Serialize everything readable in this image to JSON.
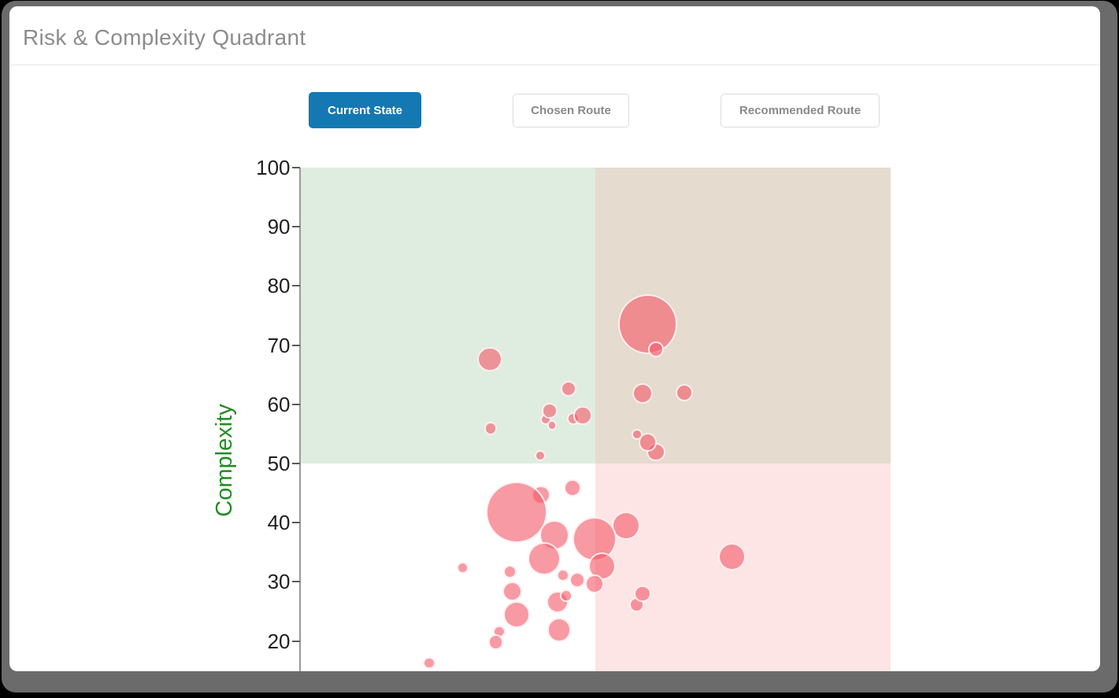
{
  "page": {
    "title": "Risk & Complexity Quadrant"
  },
  "tabs": [
    {
      "label": "Current State",
      "active": true
    },
    {
      "label": "Chosen Route",
      "active": false
    },
    {
      "label": "Recommended Route",
      "active": false
    }
  ],
  "colors": {
    "active_tab_bg": "#1478b2",
    "active_tab_text": "#ffffff",
    "inactive_tab_text": "#8a8a8a",
    "inactive_tab_border": "#dcdcdc",
    "title_text": "#8c8c8c",
    "axis_title_green": "#228b22",
    "tick_text": "#1f1f1f",
    "bubble_fill": "rgba(243,92,106,0.62)",
    "bubble_border": "rgba(255,255,255,0.85)",
    "quadrant_top_left": "#dfede0",
    "quadrant_top_right": "#e5dbce",
    "quadrant_bottom_right": "#fde5e5",
    "quadrant_bottom_left": "#ffffff",
    "window_frame": "#6b6b6b"
  },
  "chart_data": {
    "type": "scatter",
    "subtype": "bubble",
    "title": "",
    "xlabel": "",
    "ylabel": "Complexity",
    "xlim": [
      0,
      100
    ],
    "ylim": [
      0,
      100
    ],
    "y_ticks": [
      100,
      90,
      80,
      70,
      60,
      50,
      40,
      30,
      20
    ],
    "x_axis_labels_visible": false,
    "grid": false,
    "legend_position": "none",
    "quadrants": {
      "split_x": 50,
      "split_y": 50
    },
    "series": [
      {
        "name": "Current State",
        "points": [
          {
            "x": 40.8,
            "y": 44.7,
            "r": 1.6
          },
          {
            "x": 36.7,
            "y": 41.8,
            "r": 5.2
          },
          {
            "x": 46.2,
            "y": 45.9,
            "r": 1.45
          },
          {
            "x": 43.1,
            "y": 37.9,
            "r": 2.5
          },
          {
            "x": 41.4,
            "y": 33.9,
            "r": 2.8
          },
          {
            "x": 58.9,
            "y": 73.5,
            "r": 5.05
          },
          {
            "x": 60.3,
            "y": 69.3,
            "r": 1.3
          },
          {
            "x": 32.2,
            "y": 67.6,
            "r": 2.1
          },
          {
            "x": 45.5,
            "y": 62.6,
            "r": 1.35
          },
          {
            "x": 58.0,
            "y": 61.8,
            "r": 1.75
          },
          {
            "x": 65.1,
            "y": 62.0,
            "r": 1.5
          },
          {
            "x": 41.6,
            "y": 57.4,
            "r": 0.95
          },
          {
            "x": 42.3,
            "y": 58.9,
            "r": 1.3
          },
          {
            "x": 42.7,
            "y": 56.4,
            "r": 0.85
          },
          {
            "x": 46.3,
            "y": 57.6,
            "r": 1.05
          },
          {
            "x": 47.9,
            "y": 58.1,
            "r": 1.55
          },
          {
            "x": 32.3,
            "y": 55.9,
            "r": 1.1
          },
          {
            "x": 40.7,
            "y": 51.3,
            "r": 0.95
          },
          {
            "x": 60.3,
            "y": 51.9,
            "r": 1.55
          },
          {
            "x": 58.9,
            "y": 53.6,
            "r": 1.55
          },
          {
            "x": 57.1,
            "y": 54.9,
            "r": 0.95
          },
          {
            "x": 55.2,
            "y": 39.5,
            "r": 2.4
          },
          {
            "x": 49.9,
            "y": 37.2,
            "r": 3.7
          },
          {
            "x": 51.2,
            "y": 32.6,
            "r": 2.35
          },
          {
            "x": 49.9,
            "y": 29.7,
            "r": 1.6
          },
          {
            "x": 47.0,
            "y": 30.3,
            "r": 1.35
          },
          {
            "x": 44.6,
            "y": 31.1,
            "r": 1.05
          },
          {
            "x": 43.6,
            "y": 26.6,
            "r": 1.85
          },
          {
            "x": 45.1,
            "y": 27.7,
            "r": 1.05
          },
          {
            "x": 27.6,
            "y": 32.4,
            "r": 1.0
          },
          {
            "x": 35.6,
            "y": 31.7,
            "r": 1.15
          },
          {
            "x": 36.0,
            "y": 28.4,
            "r": 1.7
          },
          {
            "x": 33.8,
            "y": 21.6,
            "r": 1.05
          },
          {
            "x": 36.7,
            "y": 24.5,
            "r": 2.25
          },
          {
            "x": 33.2,
            "y": 19.8,
            "r": 1.3
          },
          {
            "x": 43.9,
            "y": 21.9,
            "r": 2.05
          },
          {
            "x": 57.0,
            "y": 26.1,
            "r": 1.25
          },
          {
            "x": 58.0,
            "y": 28.0,
            "r": 1.45
          },
          {
            "x": 73.1,
            "y": 34.2,
            "r": 2.35
          },
          {
            "x": 21.9,
            "y": 16.3,
            "r": 1.05
          }
        ]
      }
    ]
  }
}
